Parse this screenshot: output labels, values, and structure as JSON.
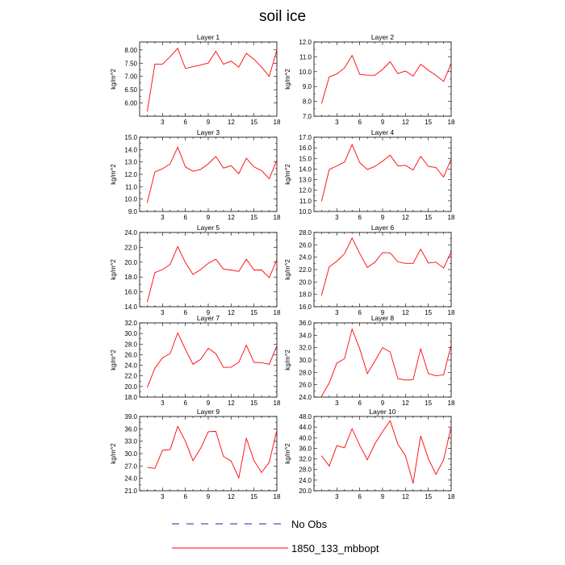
{
  "title": "soil ice",
  "colors": {
    "model": "#ff0000",
    "obs": "#2222aa",
    "axis": "#000000"
  },
  "legend": [
    {
      "label": "No Obs",
      "style": "dashed",
      "color": "#2222aa"
    },
    {
      "label": "1850_133_mbbopt",
      "style": "solid",
      "color": "#ff0000"
    }
  ],
  "chart_data": [
    {
      "type": "line",
      "title": "Layer 1",
      "ylabel": "kg/m^2",
      "x": [
        1,
        2,
        3,
        4,
        5,
        6,
        7,
        8,
        9,
        10,
        11,
        12,
        13,
        14,
        15,
        16,
        17,
        18
      ],
      "xticks": [
        3,
        6,
        9,
        12,
        15,
        18
      ],
      "xlim": [
        0,
        18
      ],
      "ylim": [
        5.5,
        8.3
      ],
      "yticks": [
        "6.00",
        "6.50",
        "7.00",
        "7.50",
        "8.00"
      ],
      "series": [
        {
          "name": "1850_133_mbbopt",
          "values": [
            5.68,
            7.47,
            7.46,
            7.75,
            8.06,
            7.3,
            7.37,
            7.43,
            7.51,
            7.95,
            7.46,
            7.58,
            7.35,
            7.87,
            7.65,
            7.35,
            7.0,
            8.0
          ]
        }
      ]
    },
    {
      "type": "line",
      "title": "Layer 2",
      "ylabel": "kg/m^2",
      "x": [
        1,
        2,
        3,
        4,
        5,
        6,
        7,
        8,
        9,
        10,
        11,
        12,
        13,
        14,
        15,
        16,
        17,
        18
      ],
      "xticks": [
        3,
        6,
        9,
        12,
        15,
        18
      ],
      "xlim": [
        0,
        18
      ],
      "ylim": [
        7.0,
        12.0
      ],
      "yticks": [
        "7.0",
        "8.0",
        "9.0",
        "10.0",
        "11.0",
        "12.0"
      ],
      "series": [
        {
          "name": "1850_133_mbbopt",
          "values": [
            7.85,
            9.65,
            9.85,
            10.25,
            11.1,
            9.82,
            9.76,
            9.76,
            10.15,
            10.67,
            9.87,
            10.05,
            9.7,
            10.5,
            10.1,
            9.75,
            9.35,
            10.55
          ]
        }
      ]
    },
    {
      "type": "line",
      "title": "Layer 3",
      "ylabel": "kg/m^2",
      "x": [
        1,
        2,
        3,
        4,
        5,
        6,
        7,
        8,
        9,
        10,
        11,
        12,
        13,
        14,
        15,
        16,
        17,
        18
      ],
      "xticks": [
        3,
        6,
        9,
        12,
        15,
        18
      ],
      "xlim": [
        0,
        18
      ],
      "ylim": [
        9.0,
        15.0
      ],
      "yticks": [
        "9.0",
        "10.0",
        "11.0",
        "12.0",
        "13.0",
        "14.0",
        "15.0"
      ],
      "series": [
        {
          "name": "1850_133_mbbopt",
          "values": [
            9.7,
            12.2,
            12.45,
            12.85,
            14.2,
            12.6,
            12.25,
            12.4,
            12.85,
            13.45,
            12.5,
            12.7,
            12.05,
            13.3,
            12.6,
            12.3,
            11.65,
            13.15
          ]
        }
      ]
    },
    {
      "type": "line",
      "title": "Layer 4",
      "ylabel": "kg/m^2",
      "x": [
        1,
        2,
        3,
        4,
        5,
        6,
        7,
        8,
        9,
        10,
        11,
        12,
        13,
        14,
        15,
        16,
        17,
        18
      ],
      "xticks": [
        3,
        6,
        9,
        12,
        15,
        18
      ],
      "xlim": [
        0,
        18
      ],
      "ylim": [
        10.0,
        17.0
      ],
      "yticks": [
        "10.0",
        "11.0",
        "12.0",
        "13.0",
        "14.0",
        "15.0",
        "16.0",
        "17.0"
      ],
      "series": [
        {
          "name": "1850_133_mbbopt",
          "values": [
            10.95,
            13.95,
            14.3,
            14.65,
            16.3,
            14.6,
            13.95,
            14.25,
            14.75,
            15.3,
            14.3,
            14.35,
            13.9,
            15.2,
            14.25,
            14.15,
            13.25,
            14.95
          ]
        }
      ]
    },
    {
      "type": "line",
      "title": "Layer 5",
      "ylabel": "kg/m^2",
      "x": [
        1,
        2,
        3,
        4,
        5,
        6,
        7,
        8,
        9,
        10,
        11,
        12,
        13,
        14,
        15,
        16,
        17,
        18
      ],
      "xticks": [
        3,
        6,
        9,
        12,
        15,
        18
      ],
      "xlim": [
        0,
        18
      ],
      "ylim": [
        14.0,
        24.0
      ],
      "yticks": [
        "14.0",
        "16.0",
        "18.0",
        "20.0",
        "22.0",
        "24.0"
      ],
      "series": [
        {
          "name": "1850_133_mbbopt",
          "values": [
            14.6,
            18.6,
            19.0,
            19.7,
            22.1,
            19.95,
            18.35,
            19.0,
            19.85,
            20.4,
            19.05,
            18.95,
            18.75,
            20.4,
            18.95,
            18.95,
            17.9,
            20.35
          ]
        }
      ]
    },
    {
      "type": "line",
      "title": "Layer 6",
      "ylabel": "kg/m^2",
      "x": [
        1,
        2,
        3,
        4,
        5,
        6,
        7,
        8,
        9,
        10,
        11,
        12,
        13,
        14,
        15,
        16,
        17,
        18
      ],
      "xticks": [
        3,
        6,
        9,
        12,
        15,
        18
      ],
      "xlim": [
        0,
        18
      ],
      "ylim": [
        16.0,
        28.0
      ],
      "yticks": [
        "16.0",
        "18.0",
        "20.0",
        "22.0",
        "24.0",
        "26.0",
        "28.0"
      ],
      "series": [
        {
          "name": "1850_133_mbbopt",
          "values": [
            17.85,
            22.45,
            23.35,
            24.55,
            27.1,
            24.6,
            22.35,
            23.2,
            24.75,
            24.7,
            23.25,
            23.0,
            23.0,
            25.3,
            23.05,
            23.2,
            22.25,
            24.85
          ]
        }
      ]
    },
    {
      "type": "line",
      "title": "Layer 7",
      "ylabel": "kg/m^2",
      "x": [
        1,
        2,
        3,
        4,
        5,
        6,
        7,
        8,
        9,
        10,
        11,
        12,
        13,
        14,
        15,
        16,
        17,
        18
      ],
      "xticks": [
        3,
        6,
        9,
        12,
        15,
        18
      ],
      "xlim": [
        0,
        18
      ],
      "ylim": [
        18.0,
        32.0
      ],
      "yticks": [
        "18.0",
        "20.0",
        "22.0",
        "24.0",
        "26.0",
        "28.0",
        "30.0",
        "32.0"
      ],
      "series": [
        {
          "name": "1850_133_mbbopt",
          "values": [
            19.8,
            23.45,
            25.4,
            26.2,
            30.1,
            27.0,
            24.2,
            25.1,
            27.2,
            26.2,
            23.6,
            23.65,
            24.55,
            27.8,
            24.55,
            24.5,
            24.2,
            27.7
          ]
        }
      ]
    },
    {
      "type": "line",
      "title": "Layer 8",
      "ylabel": "kg/m^2",
      "x": [
        1,
        2,
        3,
        4,
        5,
        6,
        7,
        8,
        9,
        10,
        11,
        12,
        13,
        14,
        15,
        16,
        17,
        18
      ],
      "xticks": [
        3,
        6,
        9,
        12,
        15,
        18
      ],
      "xlim": [
        0,
        18
      ],
      "ylim": [
        24.0,
        36.0
      ],
      "yticks": [
        "24.0",
        "26.0",
        "28.0",
        "30.0",
        "32.0",
        "34.0",
        "36.0"
      ],
      "series": [
        {
          "name": "1850_133_mbbopt",
          "values": [
            24.15,
            26.3,
            29.5,
            30.2,
            35.0,
            31.8,
            27.8,
            29.85,
            32.0,
            31.3,
            27.0,
            26.75,
            26.8,
            31.8,
            27.8,
            27.45,
            27.6,
            32.45
          ]
        }
      ]
    },
    {
      "type": "line",
      "title": "Layer 9",
      "ylabel": "kg/m^2",
      "x": [
        1,
        2,
        3,
        4,
        5,
        6,
        7,
        8,
        9,
        10,
        11,
        12,
        13,
        14,
        15,
        16,
        17,
        18
      ],
      "xticks": [
        3,
        6,
        9,
        12,
        15,
        18
      ],
      "xlim": [
        0,
        18
      ],
      "ylim": [
        21.0,
        39.0
      ],
      "yticks": [
        "21.0",
        "24.0",
        "27.0",
        "30.0",
        "33.0",
        "36.0",
        "39.0"
      ],
      "series": [
        {
          "name": "1850_133_mbbopt",
          "values": [
            26.7,
            26.4,
            30.8,
            31.0,
            36.6,
            33.0,
            28.3,
            31.3,
            35.3,
            35.4,
            29.3,
            28.2,
            24.1,
            33.7,
            28.3,
            25.4,
            27.9,
            35.7
          ]
        }
      ]
    },
    {
      "type": "line",
      "title": "Layer 10",
      "ylabel": "kg/m^2",
      "x": [
        1,
        2,
        3,
        4,
        5,
        6,
        7,
        8,
        9,
        10,
        11,
        12,
        13,
        14,
        15,
        16,
        17,
        18
      ],
      "xticks": [
        3,
        6,
        9,
        12,
        15,
        18
      ],
      "xlim": [
        0,
        18
      ],
      "ylim": [
        20.0,
        48.0
      ],
      "yticks": [
        "20.0",
        "24.0",
        "28.0",
        "32.0",
        "36.0",
        "40.0",
        "44.0",
        "48.0"
      ],
      "series": [
        {
          "name": "1850_133_mbbopt",
          "values": [
            33.2,
            29.3,
            37.0,
            36.2,
            43.4,
            37.1,
            31.7,
            37.8,
            42.3,
            46.4,
            37.6,
            33.2,
            22.8,
            40.7,
            32.1,
            26.2,
            31.6,
            44.3
          ]
        }
      ]
    }
  ]
}
